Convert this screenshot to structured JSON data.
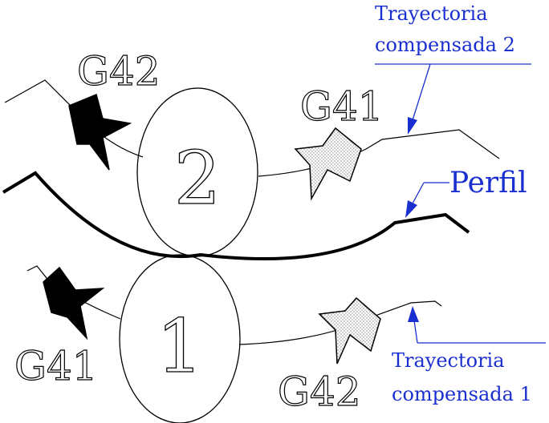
{
  "labels": {
    "path2_line1": "Trayectoria",
    "path2_line2": "compensada 2",
    "path1_line1": "Trayectoria",
    "path1_line2": "compensada 1",
    "profile": "Perfil"
  },
  "codes": {
    "top_left": "G42",
    "top_right": "G41",
    "bottom_left": "G41",
    "bottom_right": "G42"
  },
  "tools": {
    "tool_2": "2",
    "tool_1": "1"
  },
  "colors": {
    "callout": "#1a2fd0",
    "ink": "#000000"
  }
}
